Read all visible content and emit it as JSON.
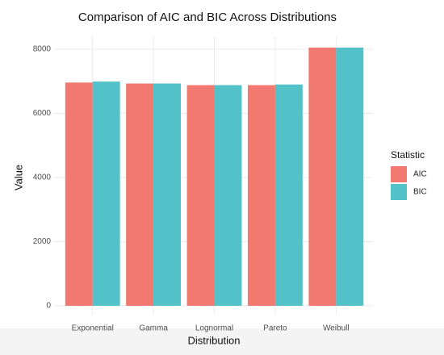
{
  "chart_data": {
    "type": "bar",
    "title": "Comparison of AIC and BIC Across Distributions",
    "x_label": "Distribution",
    "y_label": "Value",
    "categories": [
      "Exponential",
      "Gamma",
      "Lognormal",
      "Pareto",
      "Weibull"
    ],
    "series": [
      {
        "name": "AIC",
        "color": "#f27970",
        "values": [
          6960,
          6930,
          6880,
          6880,
          8050
        ]
      },
      {
        "name": "BIC",
        "color": "#53c1c8",
        "values": [
          6990,
          6930,
          6880,
          6900,
          8050
        ]
      }
    ],
    "legend_title": "Statistic",
    "legend_position": "right",
    "ylim": [
      -277,
      8402
    ],
    "yticks": [
      0,
      2000,
      4000,
      6000,
      8000
    ],
    "grid": true
  }
}
